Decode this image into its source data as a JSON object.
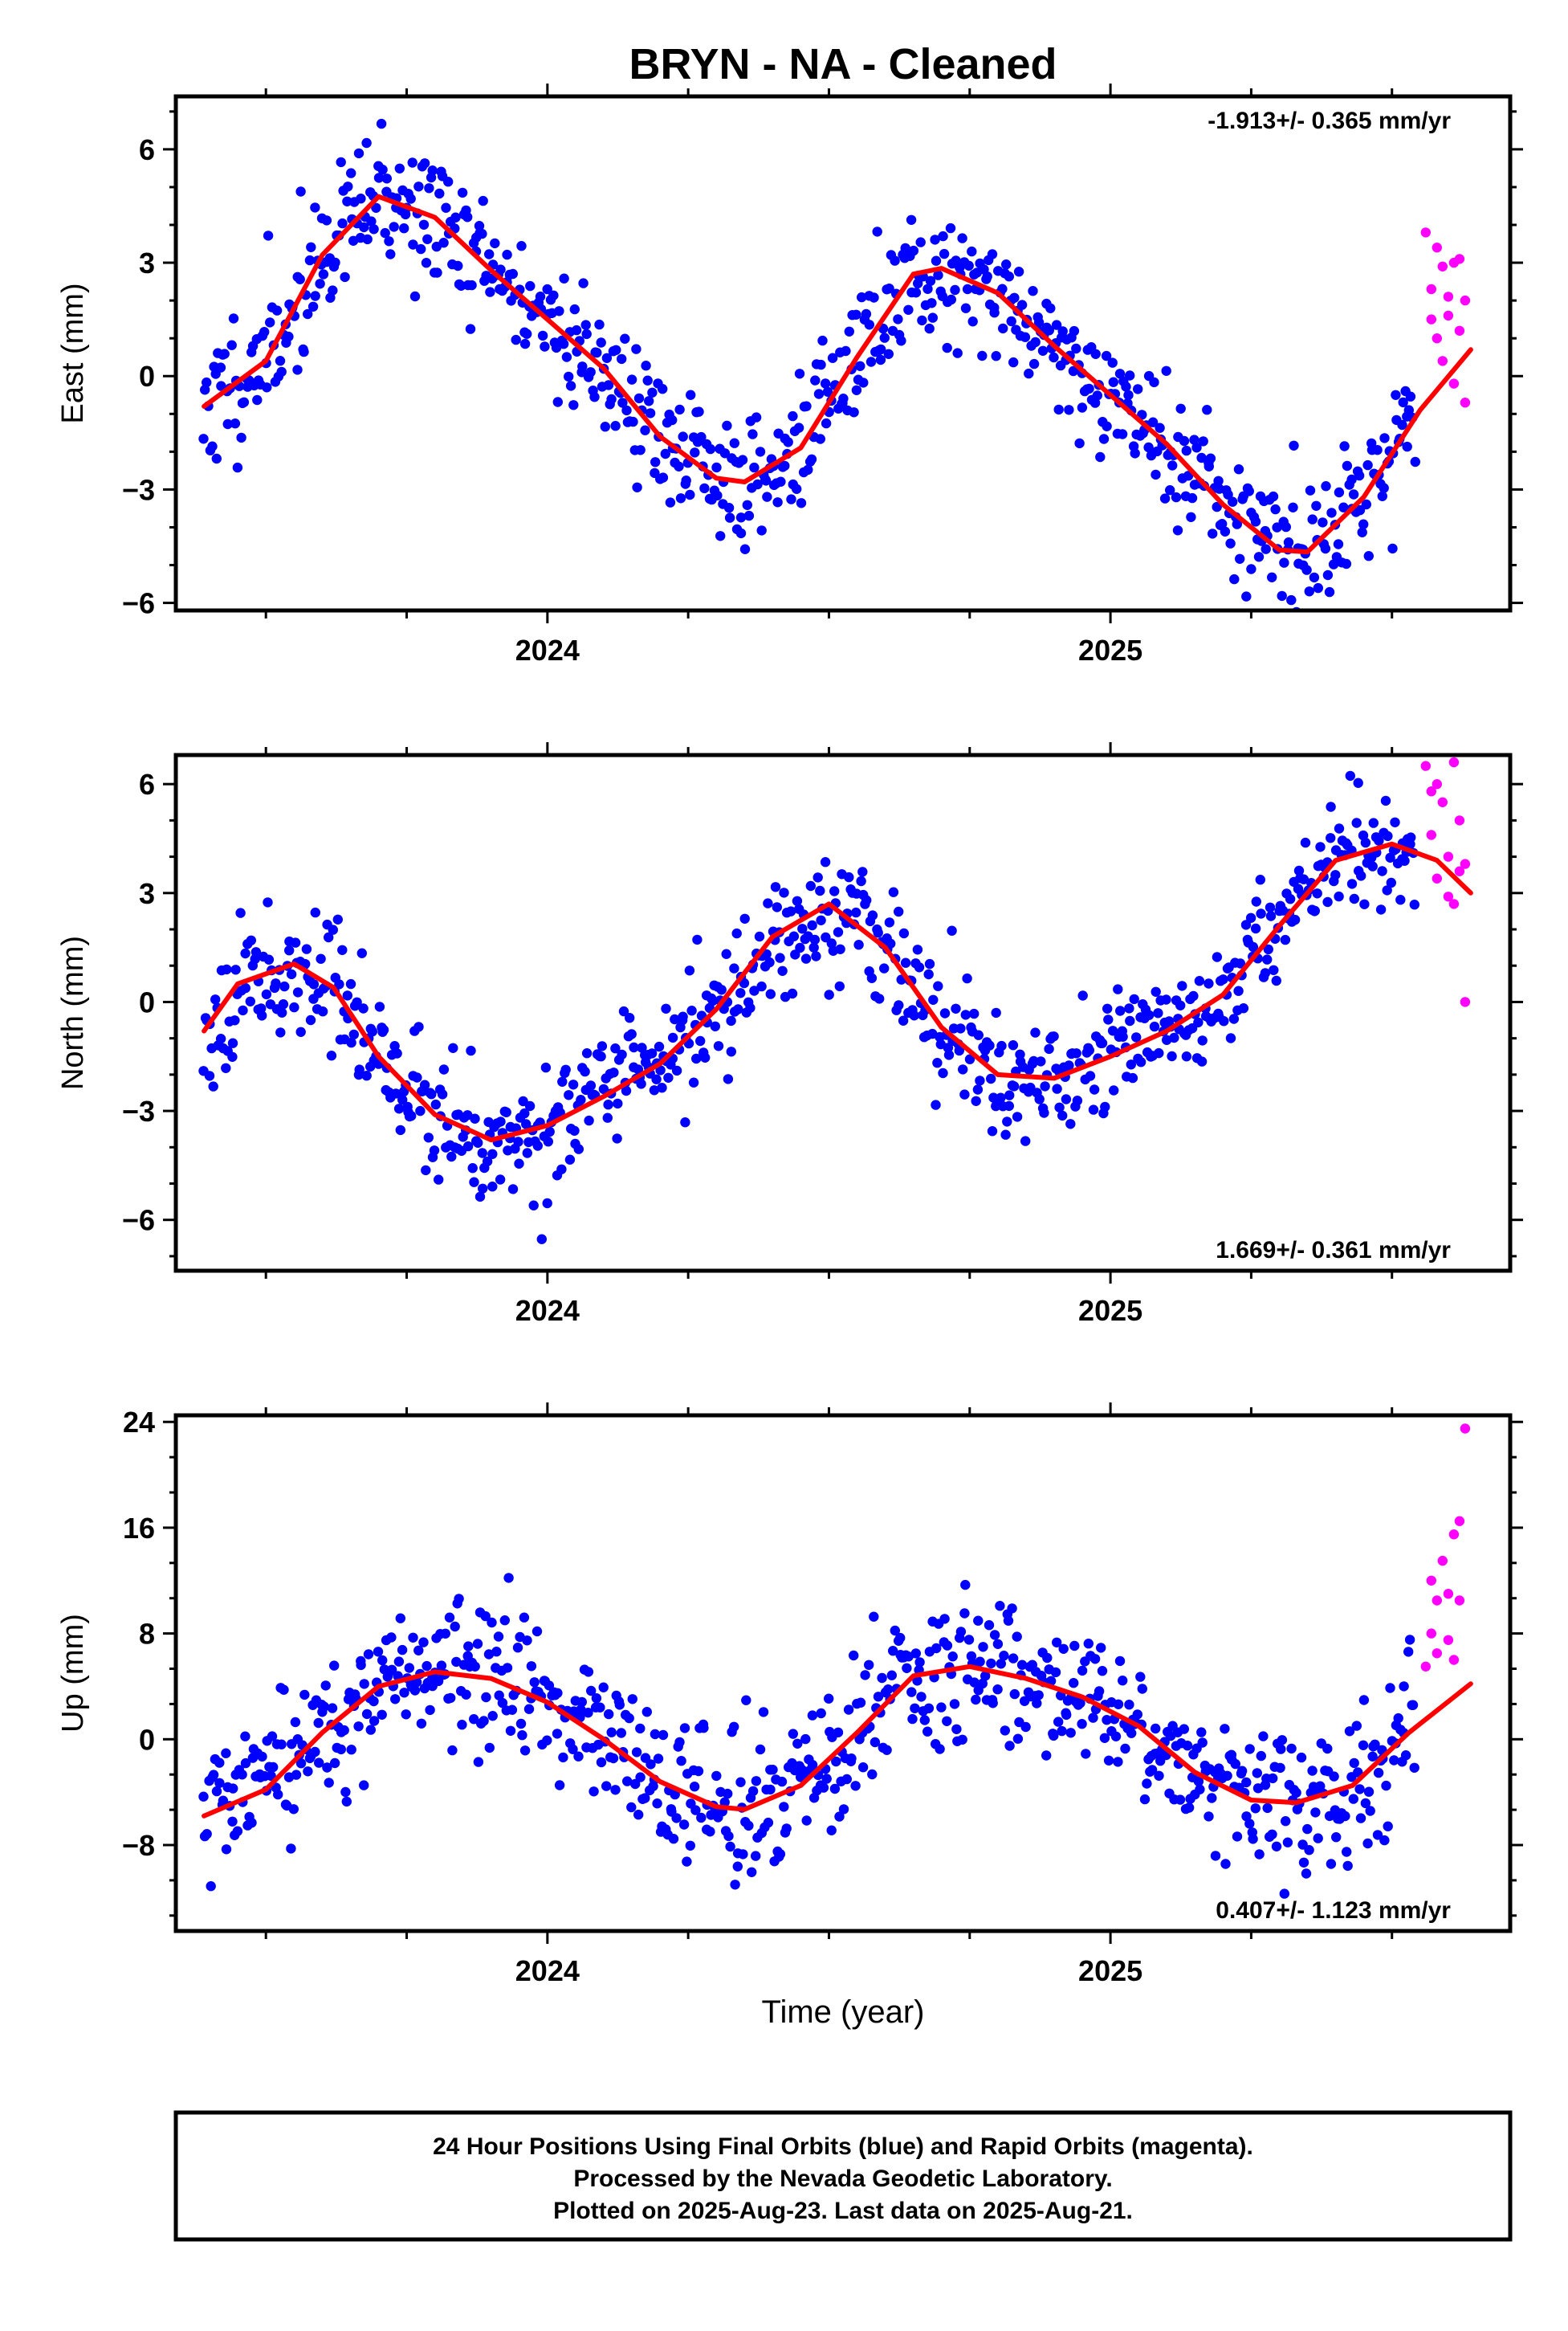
{
  "title": "BRYN  - NA - Cleaned",
  "x_axis_title": "Time (year)",
  "footer": {
    "line1": "24 Hour Positions Using Final Orbits (blue) and Rapid Orbits (magenta).",
    "line2": "Processed by the Nevada Geodetic Laboratory.",
    "line3": "Plotted on 2025-Aug-23. Last data on 2025-Aug-21."
  },
  "colors": {
    "final": "#0000ff",
    "rapid": "#ff00ff",
    "model": "#ff0000",
    "axis": "#000000"
  },
  "chart_data": [
    {
      "type": "scatter",
      "component": "East",
      "ylabel": "East (mm)",
      "rate_text": "-1.913+/- 0.365 mm/yr",
      "rate_position": "top-right",
      "xlim": [
        2023.34,
        2025.71
      ],
      "ylim": [
        -6.2,
        7.4
      ],
      "xticks": [
        2024,
        2025
      ],
      "yticks": [
        -6,
        -3,
        0,
        3,
        6
      ],
      "scatter": {
        "start": 2023.39,
        "end": 2025.54,
        "noise": 0.9,
        "seed": 11
      },
      "rapid": [
        [
          2025.56,
          3.8
        ],
        [
          2025.57,
          2.3
        ],
        [
          2025.57,
          1.5
        ],
        [
          2025.58,
          3.4
        ],
        [
          2025.58,
          1.0
        ],
        [
          2025.59,
          2.9
        ],
        [
          2025.59,
          0.4
        ],
        [
          2025.6,
          2.1
        ],
        [
          2025.6,
          1.6
        ],
        [
          2025.61,
          3.0
        ],
        [
          2025.61,
          -0.2
        ],
        [
          2025.62,
          1.2
        ],
        [
          2025.62,
          3.1
        ],
        [
          2025.63,
          -0.7
        ],
        [
          2025.63,
          2.0
        ]
      ],
      "model": [
        [
          2023.39,
          -0.8
        ],
        [
          2023.5,
          0.4
        ],
        [
          2023.6,
          3.2
        ],
        [
          2023.7,
          4.75
        ],
        [
          2023.8,
          4.2
        ],
        [
          2023.9,
          2.8
        ],
        [
          2024.0,
          1.5
        ],
        [
          2024.1,
          0.2
        ],
        [
          2024.2,
          -1.6
        ],
        [
          2024.3,
          -2.7
        ],
        [
          2024.35,
          -2.8
        ],
        [
          2024.45,
          -1.9
        ],
        [
          2024.55,
          0.5
        ],
        [
          2024.65,
          2.7
        ],
        [
          2024.7,
          2.85
        ],
        [
          2024.8,
          2.2
        ],
        [
          2024.9,
          0.8
        ],
        [
          2025.0,
          -0.5
        ],
        [
          2025.1,
          -1.8
        ],
        [
          2025.2,
          -3.4
        ],
        [
          2025.3,
          -4.6
        ],
        [
          2025.35,
          -4.65
        ],
        [
          2025.45,
          -3.2
        ],
        [
          2025.55,
          -0.9
        ],
        [
          2025.64,
          0.7
        ]
      ]
    },
    {
      "type": "scatter",
      "component": "North",
      "ylabel": "North (mm)",
      "rate_text": "1.669+/- 0.361 mm/yr",
      "rate_position": "bottom-right",
      "xlim": [
        2023.34,
        2025.71
      ],
      "ylim": [
        -7.4,
        6.8
      ],
      "xticks": [
        2024,
        2025
      ],
      "yticks": [
        -6,
        -3,
        0,
        3,
        6
      ],
      "scatter": {
        "start": 2023.39,
        "end": 2025.54,
        "noise": 0.85,
        "seed": 23
      },
      "rapid": [
        [
          2025.56,
          6.5
        ],
        [
          2025.57,
          5.8
        ],
        [
          2025.57,
          4.6
        ],
        [
          2025.58,
          6.0
        ],
        [
          2025.58,
          3.4
        ],
        [
          2025.59,
          5.5
        ],
        [
          2025.6,
          2.9
        ],
        [
          2025.6,
          4.0
        ],
        [
          2025.61,
          6.6
        ],
        [
          2025.61,
          2.7
        ],
        [
          2025.62,
          5.0
        ],
        [
          2025.62,
          3.6
        ],
        [
          2025.63,
          3.8
        ],
        [
          2025.63,
          0.0
        ]
      ],
      "model": [
        [
          2023.39,
          -0.8
        ],
        [
          2023.45,
          0.5
        ],
        [
          2023.55,
          1.05
        ],
        [
          2023.62,
          0.4
        ],
        [
          2023.7,
          -1.5
        ],
        [
          2023.8,
          -3.1
        ],
        [
          2023.9,
          -3.8
        ],
        [
          2024.0,
          -3.4
        ],
        [
          2024.1,
          -2.6
        ],
        [
          2024.2,
          -1.7
        ],
        [
          2024.3,
          -0.2
        ],
        [
          2024.4,
          1.8
        ],
        [
          2024.5,
          2.7
        ],
        [
          2024.6,
          1.5
        ],
        [
          2024.7,
          -0.7
        ],
        [
          2024.8,
          -2.0
        ],
        [
          2024.9,
          -2.1
        ],
        [
          2025.0,
          -1.5
        ],
        [
          2025.1,
          -0.8
        ],
        [
          2025.2,
          0.2
        ],
        [
          2025.3,
          2.1
        ],
        [
          2025.4,
          3.9
        ],
        [
          2025.5,
          4.35
        ],
        [
          2025.58,
          3.9
        ],
        [
          2025.64,
          3.0
        ]
      ]
    },
    {
      "type": "scatter",
      "component": "Up",
      "ylabel": "Up (mm)",
      "rate_text": "0.407+/- 1.123 mm/yr",
      "rate_position": "bottom-right",
      "xlim": [
        2023.34,
        2025.71
      ],
      "ylim": [
        -14.5,
        24.5
      ],
      "xticks": [
        2024,
        2025
      ],
      "yticks": [
        -8,
        0,
        8,
        16,
        24
      ],
      "scatter": {
        "start": 2023.39,
        "end": 2025.54,
        "noise": 2.7,
        "seed": 37
      },
      "rapid": [
        [
          2025.56,
          5.5
        ],
        [
          2025.57,
          12.0
        ],
        [
          2025.57,
          8.0
        ],
        [
          2025.58,
          10.5
        ],
        [
          2025.58,
          6.5
        ],
        [
          2025.59,
          13.5
        ],
        [
          2025.6,
          7.5
        ],
        [
          2025.6,
          11.0
        ],
        [
          2025.61,
          15.5
        ],
        [
          2025.61,
          6.0
        ],
        [
          2025.62,
          16.5
        ],
        [
          2025.62,
          10.5
        ],
        [
          2025.63,
          23.5
        ]
      ],
      "model": [
        [
          2023.39,
          -5.8
        ],
        [
          2023.5,
          -3.8
        ],
        [
          2023.6,
          0.5
        ],
        [
          2023.7,
          4.0
        ],
        [
          2023.8,
          5.1
        ],
        [
          2023.9,
          4.6
        ],
        [
          2024.0,
          2.8
        ],
        [
          2024.1,
          0.0
        ],
        [
          2024.2,
          -3.2
        ],
        [
          2024.3,
          -5.1
        ],
        [
          2024.35,
          -5.3
        ],
        [
          2024.45,
          -3.5
        ],
        [
          2024.55,
          0.5
        ],
        [
          2024.65,
          4.8
        ],
        [
          2024.75,
          5.5
        ],
        [
          2024.85,
          4.6
        ],
        [
          2024.95,
          3.2
        ],
        [
          2025.05,
          1.0
        ],
        [
          2025.15,
          -2.5
        ],
        [
          2025.25,
          -4.6
        ],
        [
          2025.33,
          -4.8
        ],
        [
          2025.43,
          -3.5
        ],
        [
          2025.53,
          0.5
        ],
        [
          2025.64,
          4.2
        ]
      ]
    }
  ]
}
